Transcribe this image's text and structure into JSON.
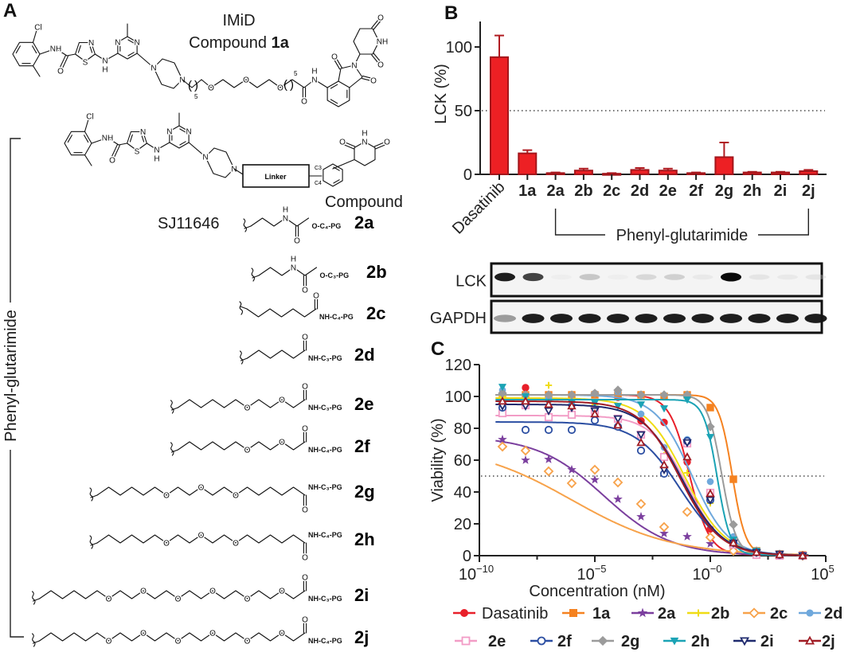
{
  "panel_labels": {
    "a": "A",
    "b": "B",
    "c": "C"
  },
  "panel_a": {
    "imid_label": "IMiD",
    "compound_1a_prefix": "Compound ",
    "compound_1a_id": "1a",
    "compound_2_label": "Compound",
    "sj_label": "SJ11646",
    "linker_label": "Linker",
    "bracket_label": "Phenyl-glutarimide",
    "position_labels": {
      "c3": "C3",
      "c4": "C4"
    },
    "atoms": {
      "Cl": "Cl",
      "NH": "NH",
      "N": "N",
      "O": "O",
      "S": "S",
      "H": "H",
      "paren_open": "(",
      "paren_close": ")",
      "repeat": "5"
    },
    "linkers": [
      {
        "id": "2a",
        "chain": "CCCNKC",
        "carbonyl": "down",
        "terminal": "O-C₄-PG"
      },
      {
        "id": "2b",
        "chain": "CCCNKC",
        "carbonyl": "down",
        "terminal": "O-C₃-PG"
      },
      {
        "id": "2c",
        "chain": "CCCCCCK",
        "carbonyl": "up",
        "terminal": "NH-C₄-PG"
      },
      {
        "id": "2d",
        "chain": "CCCCCK",
        "carbonyl": "up",
        "terminal": "NH-C₃-PG"
      },
      {
        "id": "2e",
        "chain": "CCCCCCOCCOCK",
        "carbonyl": "up",
        "terminal": "NH-C₃-PG"
      },
      {
        "id": "2f",
        "chain": "CCCCCCOCCOCK",
        "carbonyl": "up",
        "terminal": "NH-C₄-PG"
      },
      {
        "id": "2g",
        "chain": "CCCCCCOCCOCCOCCCCCK",
        "carbonyl": "down",
        "terminal": "NH-C₃-PG"
      },
      {
        "id": "2h",
        "chain": "CCCCCCOCCOCCOCCCCCK",
        "carbonyl": "down",
        "terminal": "NH-C₄-PG"
      },
      {
        "id": "2i",
        "chain": "CCCCCCOCCOCCOCCOCCOCCOCK",
        "carbonyl": "up",
        "terminal": "NH-C₃-PG"
      },
      {
        "id": "2j",
        "chain": "CCCCCCOCCOCCOCCOCCOCCOCK",
        "carbonyl": "up",
        "terminal": "NH-C₄-PG"
      }
    ]
  },
  "western_blot": {
    "rows": [
      {
        "label": "LCK",
        "intensities": [
          0.95,
          0.85,
          0.05,
          0.35,
          0.05,
          0.25,
          0.3,
          0.1,
          1.0,
          0.15,
          0.1,
          0.15
        ]
      },
      {
        "label": "GAPDH",
        "intensities": [
          0.55,
          0.95,
          0.95,
          0.95,
          0.95,
          0.95,
          0.95,
          0.95,
          0.95,
          0.95,
          0.95,
          0.95
        ]
      }
    ]
  },
  "chart_data": [
    {
      "type": "bar",
      "categories": [
        "Dasatinib",
        "1a",
        "2a",
        "2b",
        "2c",
        "2d",
        "2e",
        "2f",
        "2g",
        "2h",
        "2i",
        "2j"
      ],
      "values": [
        92,
        16.5,
        1,
        3,
        0.5,
        3.5,
        3,
        1,
        13.5,
        1.5,
        1.5,
        2.5
      ],
      "error_upper": [
        109,
        19,
        1.5,
        4.5,
        1,
        5,
        4.5,
        1.5,
        25,
        2,
        2,
        3.5
      ],
      "ylabel": "LCK (%)",
      "ylim": [
        0,
        120
      ],
      "yticks": [
        "0",
        "50",
        "100"
      ],
      "ytick_values": [
        0,
        50,
        100
      ],
      "reference_line": 50,
      "bar_color": "#ed2024",
      "bar_edge_color": "#a3161b",
      "group_bracket": {
        "label": "Phenyl-glutarimide",
        "from": "2a",
        "to": "2j"
      }
    },
    {
      "type": "line",
      "xscale": "log",
      "xlabel": "Concentration (nM)",
      "ylabel": "Viability (%)",
      "xlim": [
        1e-10,
        100000.0
      ],
      "ylim": [
        0,
        120
      ],
      "yticks": [
        "0",
        "20",
        "40",
        "60",
        "80",
        "100",
        "120"
      ],
      "ytick_values": [
        0,
        20,
        40,
        60,
        80,
        100,
        120
      ],
      "xticks": [
        {
          "base": "10",
          "exp": "−10"
        },
        {
          "base": "10",
          "exp": "−5"
        },
        {
          "base": "10",
          "exp": "−0"
        },
        {
          "base": "10",
          "exp": "5"
        }
      ],
      "xtick_values": [
        1e-10,
        1e-05,
        1,
        100000.0
      ],
      "reference_line": 50,
      "legend_placement": "bottom",
      "x": [
        1e-09,
        1e-08,
        1e-07,
        1e-06,
        1e-05,
        0.0001,
        0.001,
        0.01,
        0.1,
        1,
        10,
        100,
        1000,
        10000
      ],
      "series": [
        {
          "name": "Dasatinib",
          "color": "#e8202a",
          "marker": "circle",
          "filled": true,
          "values": [
            101.7,
            105.5,
            100.5,
            101,
            101.7,
            99.5,
            84.7,
            83.7,
            58.8,
            16.8,
            5.8,
            2,
            1,
            0.5
          ],
          "fit": {
            "top": 101,
            "bottom": 0.5,
            "log_ec50": -0.9,
            "hill": 1.0
          }
        },
        {
          "name": "1a",
          "color": "#f58220",
          "marker": "square",
          "filled": true,
          "values": [
            100,
            101,
            101,
            101,
            101,
            101,
            101,
            100,
            101,
            93,
            48,
            3,
            1,
            0.5
          ],
          "fit": {
            "top": 101,
            "bottom": 0.5,
            "log_ec50": 0.95,
            "hill": 1.5
          }
        },
        {
          "name": "2a",
          "color": "#7b3f9e",
          "marker": "star",
          "filled": true,
          "values": [
            73,
            60,
            60.5,
            54,
            47.7,
            35.5,
            24.5,
            14,
            12,
            7.5,
            4,
            1,
            0.5,
            0
          ],
          "fit": {
            "top": 75,
            "bottom": 0,
            "log_ec50": -4.6,
            "hill": 0.3
          }
        },
        {
          "name": "2b",
          "color": "#f0dc14",
          "marker": "plus",
          "filled": true,
          "values": [
            100,
            99,
            107,
            97,
            95,
            82,
            76,
            63,
            52,
            33,
            8,
            2,
            0.5,
            0
          ],
          "fit": {
            "top": 99,
            "bottom": 0,
            "log_ec50": -1.1,
            "hill": 0.5
          }
        },
        {
          "name": "2c",
          "color": "#f7a24a",
          "marker": "diamond",
          "filled": false,
          "values": [
            68.5,
            66,
            53,
            45.5,
            54,
            46,
            32.5,
            18,
            27.5,
            11.5,
            3,
            1,
            0.5,
            0
          ],
          "fit": {
            "top": 70,
            "bottom": 0,
            "log_ec50": -6.0,
            "hill": 0.2
          }
        },
        {
          "name": "2d",
          "color": "#6fa8dc",
          "marker": "asterisk",
          "filled": true,
          "values": [
            104,
            101,
            99,
            95,
            102,
            103,
            89,
            68,
            73,
            46.5,
            12,
            2,
            1,
            0
          ],
          "fit": {
            "top": 101,
            "bottom": 0,
            "log_ec50": -0.8,
            "hill": 0.55
          }
        },
        {
          "name": "2e",
          "color": "#f29cc6",
          "marker": "square",
          "filled": false,
          "values": [
            89.5,
            94.5,
            87,
            88.5,
            91,
            86,
            76,
            62,
            70.5,
            39.5,
            7,
            0.5,
            0,
            0
          ],
          "fit": {
            "top": 88,
            "bottom": 0,
            "log_ec50": -1.0,
            "hill": 0.55
          }
        },
        {
          "name": "2f",
          "color": "#2b4ea2",
          "marker": "circle",
          "filled": false,
          "values": [
            93,
            79,
            79,
            79,
            85,
            81,
            66,
            51.5,
            72,
            35,
            8,
            2,
            0.5,
            0
          ],
          "fit": {
            "top": 84,
            "bottom": 0,
            "log_ec50": -1.3,
            "hill": 0.45
          }
        },
        {
          "name": "2g",
          "color": "#9b9b9b",
          "marker": "diamond",
          "filled": true,
          "values": [
            102,
            101,
            101,
            101,
            102,
            104,
            101,
            101,
            101,
            81,
            19.5,
            3,
            1,
            0
          ],
          "fit": {
            "top": 101,
            "bottom": 0.5,
            "log_ec50": 0.5,
            "hill": 1.4
          }
        },
        {
          "name": "2h",
          "color": "#1ba3b5",
          "marker": "triangle-down",
          "filled": true,
          "values": [
            106,
            100,
            96,
            96,
            96,
            94,
            95,
            92.5,
            98,
            74.5,
            10,
            3,
            1,
            0
          ],
          "fit": {
            "top": 98,
            "bottom": 0.5,
            "log_ec50": 0.3,
            "hill": 1.5
          }
        },
        {
          "name": "2i",
          "color": "#1f2a6e",
          "marker": "triangle-down",
          "filled": false,
          "values": [
            94,
            94,
            91,
            93,
            91,
            86,
            76,
            54,
            71,
            35,
            8,
            2,
            1,
            0
          ],
          "fit": {
            "top": 95,
            "bottom": 0,
            "log_ec50": -1.2,
            "hill": 0.5
          }
        },
        {
          "name": "2j",
          "color": "#a01c24",
          "marker": "triangle-up",
          "filled": false,
          "values": [
            97,
            97,
            95,
            94,
            89,
            82,
            71,
            57,
            62,
            39,
            8,
            2,
            0.5,
            0
          ],
          "fit": {
            "top": 97,
            "bottom": 0,
            "log_ec50": -1.3,
            "hill": 0.5
          }
        }
      ]
    }
  ]
}
